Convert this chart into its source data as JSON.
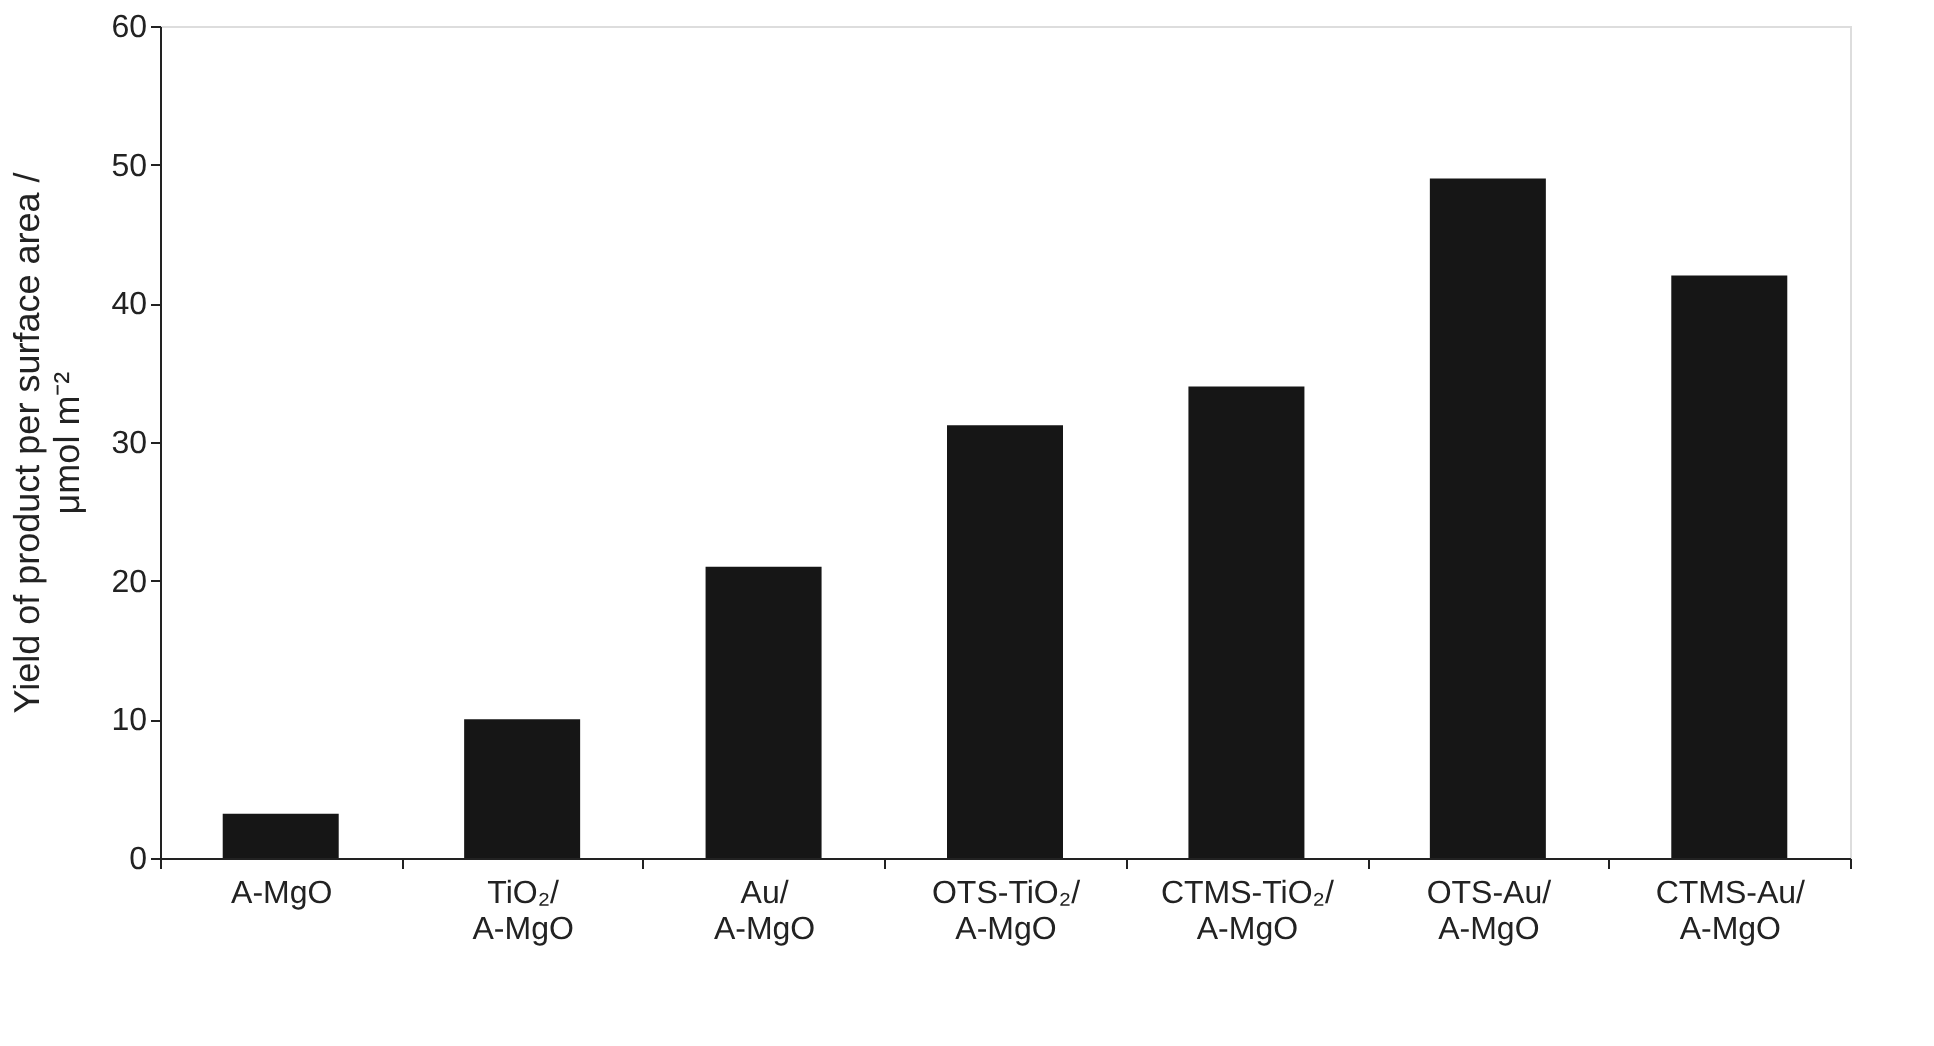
{
  "chart_data": {
    "type": "bar",
    "ylabel": "Yield of product per surface area /\nμmol m⁻²",
    "categories": [
      "A-MgO",
      "TiO₂/\nA-MgO",
      "Au/\nA-MgO",
      "OTS-TiO₂/\nA-MgO",
      "CTMS-TiO₂/\nA-MgO",
      "OTS-Au/\nA-MgO",
      "CTMS-Au/\nA-MgO"
    ],
    "values": [
      3.2,
      10,
      21,
      31.2,
      34,
      49,
      42
    ],
    "color": "#161616",
    "ylim": [
      0,
      60
    ],
    "yticks": [
      0,
      10,
      20,
      30,
      40,
      50,
      60
    ],
    "grid": false
  }
}
